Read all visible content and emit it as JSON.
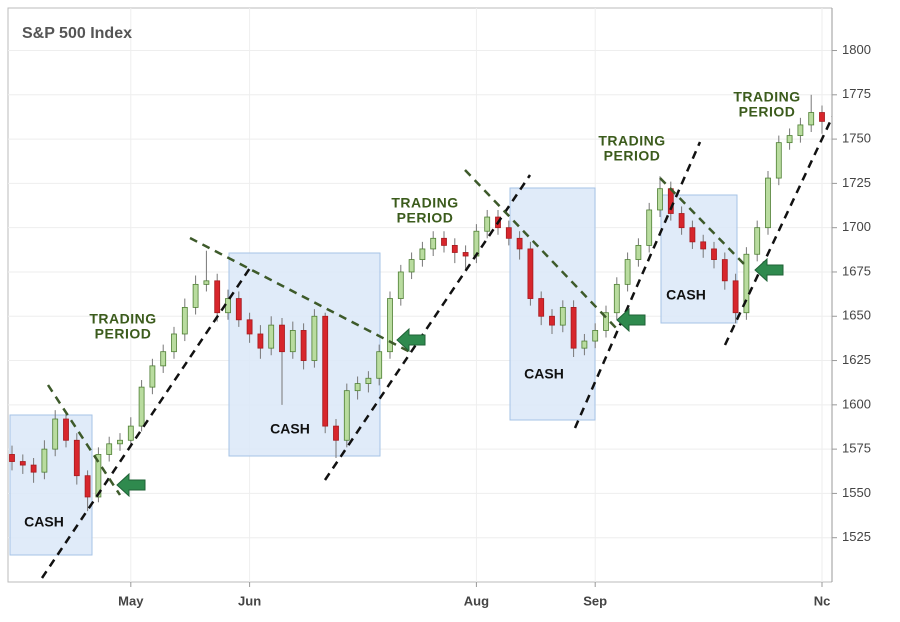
{
  "chart_data": {
    "type": "candlestick",
    "title": "S&P 500 Index",
    "categories": [
      null,
      null,
      null,
      null,
      null,
      null,
      null,
      null,
      null,
      null,
      null,
      "May",
      null,
      null,
      null,
      null,
      null,
      null,
      null,
      null,
      null,
      null,
      "Jun",
      null,
      null,
      null,
      null,
      null,
      null,
      null,
      null,
      null,
      null,
      null,
      null,
      null,
      null,
      null,
      null,
      null,
      null,
      null,
      null,
      "Aug",
      null,
      null,
      null,
      null,
      null,
      null,
      null,
      null,
      null,
      null,
      "Sep",
      null,
      null,
      null,
      null,
      null,
      null,
      null,
      null,
      null,
      null,
      null,
      null,
      null,
      null,
      null,
      null,
      null,
      null,
      null,
      null,
      "Nc"
    ],
    "open": [
      1572,
      1568,
      1566,
      1562,
      1575,
      1592,
      1580,
      1560,
      1548,
      1572,
      1578,
      1580,
      1588,
      1610,
      1622,
      1630,
      1640,
      1655,
      1668,
      1670,
      1652,
      1660,
      1648,
      1640,
      1632,
      1645,
      1630,
      1642,
      1625,
      1650,
      1588,
      1580,
      1608,
      1612,
      1615,
      1630,
      1660,
      1675,
      1682,
      1688,
      1694,
      1690,
      1686,
      1684,
      1698,
      1706,
      1700,
      1694,
      1688,
      1660,
      1650,
      1645,
      1655,
      1632,
      1636,
      1642,
      1652,
      1668,
      1682,
      1690,
      1710,
      1722,
      1708,
      1700,
      1692,
      1688,
      1682,
      1670,
      1652,
      1685,
      1700,
      1728,
      1748,
      1752,
      1758,
      1765
    ],
    "high": [
      1577,
      1572,
      1570,
      1580,
      1597,
      1596,
      1584,
      1563,
      1576,
      1582,
      1584,
      1593,
      1614,
      1626,
      1634,
      1644,
      1660,
      1673,
      1687,
      1674,
      1665,
      1664,
      1652,
      1645,
      1650,
      1649,
      1647,
      1646,
      1654,
      1652,
      1592,
      1612,
      1616,
      1619,
      1634,
      1664,
      1679,
      1686,
      1692,
      1698,
      1698,
      1694,
      1690,
      1702,
      1710,
      1710,
      1704,
      1698,
      1692,
      1664,
      1654,
      1659,
      1659,
      1640,
      1646,
      1656,
      1672,
      1686,
      1694,
      1714,
      1729,
      1726,
      1712,
      1704,
      1696,
      1692,
      1686,
      1674,
      1689,
      1704,
      1732,
      1752,
      1756,
      1762,
      1775,
      1769
    ],
    "low": [
      1563,
      1561,
      1556,
      1558,
      1571,
      1576,
      1555,
      1540,
      1545,
      1568,
      1574,
      1576,
      1585,
      1606,
      1618,
      1626,
      1636,
      1651,
      1664,
      1647,
      1648,
      1644,
      1635,
      1626,
      1628,
      1600,
      1626,
      1620,
      1621,
      1584,
      1570,
      1576,
      1603,
      1607,
      1611,
      1626,
      1656,
      1671,
      1678,
      1684,
      1686,
      1680,
      1676,
      1680,
      1694,
      1696,
      1690,
      1682,
      1656,
      1645,
      1640,
      1641,
      1627,
      1628,
      1632,
      1638,
      1648,
      1664,
      1678,
      1686,
      1706,
      1704,
      1696,
      1688,
      1683,
      1677,
      1665,
      1646,
      1648,
      1681,
      1696,
      1724,
      1744,
      1748,
      1754,
      1753
    ],
    "close": [
      1568,
      1566,
      1562,
      1575,
      1592,
      1580,
      1560,
      1548,
      1572,
      1578,
      1580,
      1588,
      1610,
      1622,
      1630,
      1640,
      1655,
      1668,
      1670,
      1652,
      1660,
      1648,
      1640,
      1632,
      1645,
      1630,
      1642,
      1625,
      1650,
      1588,
      1580,
      1608,
      1612,
      1615,
      1630,
      1660,
      1675,
      1682,
      1688,
      1694,
      1690,
      1686,
      1684,
      1698,
      1706,
      1700,
      1694,
      1688,
      1660,
      1650,
      1645,
      1655,
      1632,
      1636,
      1642,
      1652,
      1668,
      1682,
      1690,
      1710,
      1722,
      1708,
      1700,
      1692,
      1688,
      1682,
      1670,
      1652,
      1685,
      1700,
      1728,
      1748,
      1752,
      1758,
      1765,
      1760
    ],
    "up_color": "#b9dc9f",
    "down_color": "#d7262c",
    "ylim": [
      1500,
      1824
    ],
    "yticks": [
      1525,
      1550,
      1575,
      1600,
      1625,
      1650,
      1675,
      1700,
      1725,
      1750,
      1775,
      1800
    ],
    "grid": true,
    "cash_labels": [
      "CASH",
      "CASH",
      "CASH",
      "CASH"
    ],
    "trading_labels": [
      [
        "TRADING",
        "PERIOD"
      ],
      [
        "TRADING",
        "PERIOD"
      ],
      [
        "TRADING",
        "PERIOD"
      ],
      [
        "TRADING",
        "PERIOD"
      ]
    ]
  }
}
